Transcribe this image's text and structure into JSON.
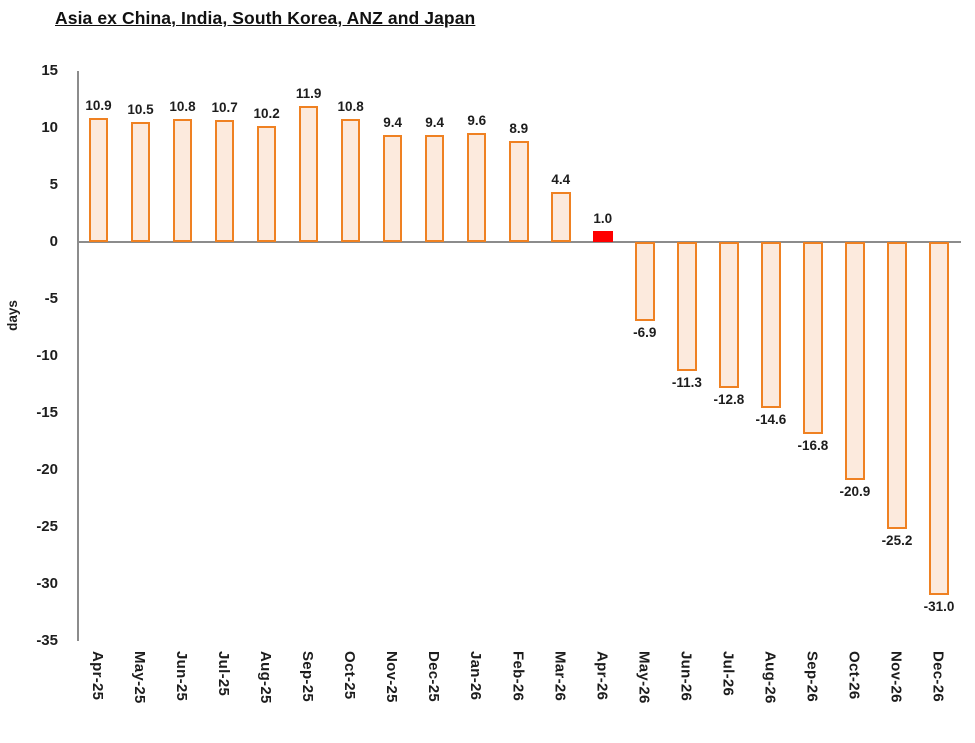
{
  "title": "Asia ex China, India, South Korea, ANZ and Japan",
  "chart_data": {
    "type": "bar",
    "title": "Asia ex China, India, South Korea, ANZ and Japan",
    "xlabel": "",
    "ylabel": "days",
    "ylim": [
      -35,
      15
    ],
    "ytick_step": 5,
    "yticks": [
      15,
      10,
      5,
      0,
      -5,
      -10,
      -15,
      -20,
      -25,
      -30,
      -35
    ],
    "grid": false,
    "legend": false,
    "categories": [
      "Apr-25",
      "May-25",
      "Jun-25",
      "Jul-25",
      "Aug-25",
      "Sep-25",
      "Oct-25",
      "Nov-25",
      "Dec-25",
      "Jan-26",
      "Feb-26",
      "Mar-26",
      "Apr-26",
      "May-26",
      "Jun-26",
      "Jul-26",
      "Aug-26",
      "Sep-26",
      "Oct-26",
      "Nov-26",
      "Dec-26"
    ],
    "values": [
      10.9,
      10.5,
      10.8,
      10.7,
      10.2,
      11.9,
      10.8,
      9.4,
      9.4,
      9.6,
      8.9,
      4.4,
      1.0,
      -6.9,
      -11.3,
      -12.8,
      -14.6,
      -16.8,
      -20.9,
      -25.2,
      -31.0
    ],
    "data_labels": [
      "10.9",
      "10.5",
      "10.8",
      "10.7",
      "10.2",
      "11.9",
      "10.8",
      "9.4",
      "9.4",
      "9.6",
      "8.9",
      "4.4",
      "1.0",
      "-6.9",
      "-11.3",
      "-12.8",
      "-14.6",
      "-16.8",
      "-20.9",
      "-25.2",
      "-31.0"
    ],
    "highlight_index": 12,
    "colors": {
      "bar_fill": "#FCEADD",
      "bar_border": "#EF8122",
      "highlight_fill": "#FE0000",
      "axis_line": "#8C8C8C",
      "text": "#1D1D1D"
    }
  }
}
